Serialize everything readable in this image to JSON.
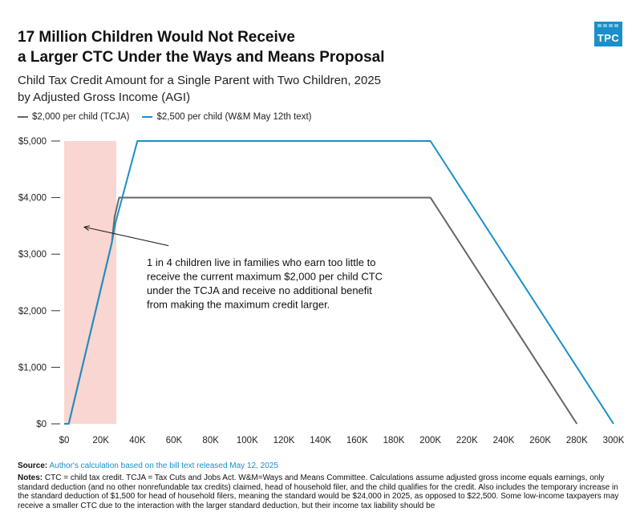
{
  "header": {
    "title_line1": "17 Million Children Would Not Receive",
    "title_line2": "a Larger CTC Under the Ways and Means Proposal",
    "subtitle_line1": "Child Tax Credit Amount for a Single Parent with Two Children, 2025",
    "subtitle_line2": "by Adjusted Gross Income (AGI)",
    "logo_text": "TPC"
  },
  "chart_data": {
    "type": "line",
    "xlim": [
      0,
      300000
    ],
    "ylim": [
      0,
      5000
    ],
    "x_ticks": [
      "$0",
      "20K",
      "40K",
      "60K",
      "80K",
      "100K",
      "120K",
      "140K",
      "160K",
      "180K",
      "200K",
      "220K",
      "240K",
      "260K",
      "280K",
      "300K"
    ],
    "y_ticks": [
      "$0",
      "$1,000",
      "$2,000",
      "$3,000",
      "$4,000",
      "$5,000"
    ],
    "grid": false,
    "legend_position": "top-left",
    "series": [
      {
        "name": "$2,000 per child (TCJA)",
        "color": "#666666",
        "x": [
          0,
          2500,
          26000,
          27500,
          30000,
          200000,
          280000
        ],
        "y": [
          0,
          0,
          3200,
          3650,
          4000,
          4000,
          0
        ]
      },
      {
        "name": "$2,500 per child (W&M May 12th text)",
        "color": "#1a8fc9",
        "x": [
          0,
          2500,
          26000,
          28000,
          40000,
          200000,
          300000
        ],
        "y": [
          0,
          0,
          3200,
          3550,
          5000,
          5000,
          0
        ]
      }
    ],
    "shaded_region": {
      "x": [
        0,
        28500
      ],
      "color": "#f9d6d1"
    },
    "annotation": {
      "lines": [
        "1 in 4 children live in families who earn too little to",
        "receive the current maximum $2,000 per child CTC",
        "under the TCJA and receive no additional benefit",
        "from making the maximum credit larger."
      ],
      "arrow_target": {
        "x": 11000,
        "y": 3480
      },
      "arrow_origin": {
        "x": 57000,
        "y": 3150
      }
    }
  },
  "footer": {
    "source_label": "Source:",
    "source_text": "Author's calculation based on the bill text released May 12, 2025",
    "notes_label": "Notes:",
    "notes_text": "CTC = child tax credit. TCJA = Tax Cuts and Jobs Act. W&M=Ways and Means Committee. Calculations assume adjusted gross income equals earnings, only standard deduction (and no other nonrefundable tax credits) claimed, head of household filer, and the child qualifies for the credit. Also includes the temporary increase in the standard deduction of $1,500 for head of household filers, meaning the standard would be $24,000 in 2025, as opposed to $22,500. Some low-income taxpayers may receive a smaller CTC due to the interaction with the larger standard deduction, but their income tax liability should be"
  },
  "colors": {
    "tcja": "#666666",
    "wm": "#1a8fc9",
    "shade": "#f9d6d1",
    "accent": "#1a8fc9"
  }
}
